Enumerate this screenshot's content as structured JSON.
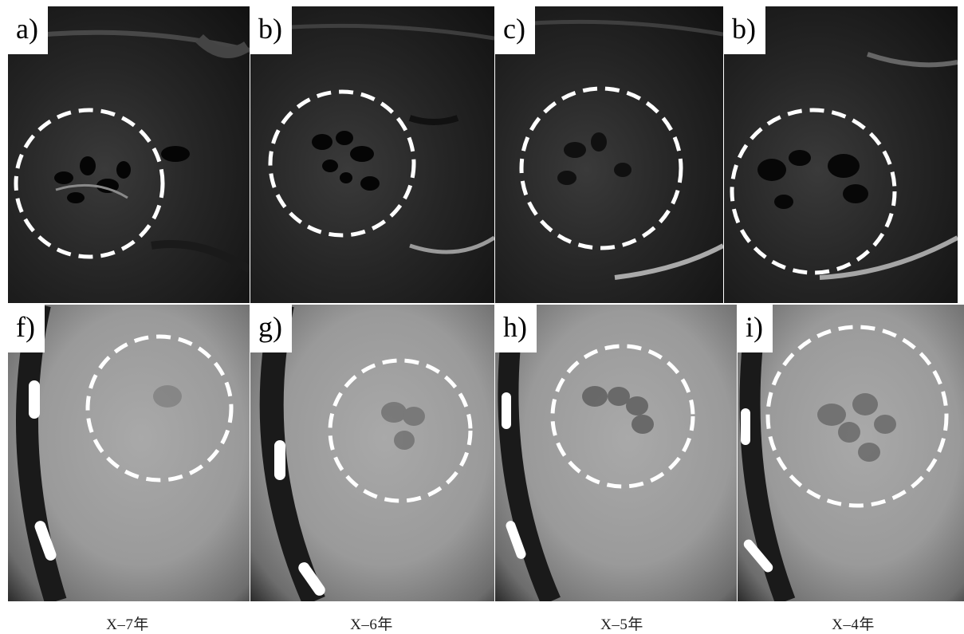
{
  "panels_top": [
    {
      "label": "a)"
    },
    {
      "label": "b)"
    },
    {
      "label": "c)"
    },
    {
      "label": "b)"
    }
  ],
  "panels_bottom": [
    {
      "label": "f)"
    },
    {
      "label": "g)"
    },
    {
      "label": "h)"
    },
    {
      "label": "i)"
    }
  ],
  "captions": [
    "X–7年",
    "X–6年",
    "X–5年",
    "X–4年"
  ],
  "colors": {
    "ultrasound_bg": "#262626",
    "ct_bg": "#9a9a9a",
    "marker_circle": "#ffffff"
  }
}
